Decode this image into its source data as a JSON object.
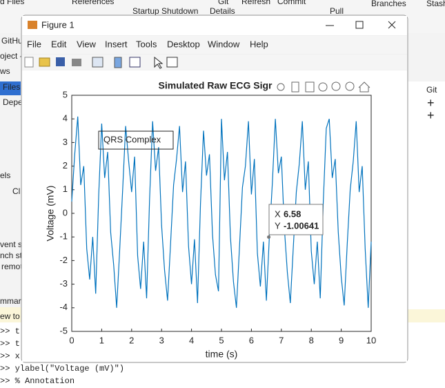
{
  "background": {
    "top_fragments": [
      "d Files",
      "References",
      "Startup Shutdown",
      "Git",
      "Details",
      "Refresh",
      "Commit",
      "Pull",
      "Branches",
      "Stash"
    ],
    "left_fragments": [
      "GitHu",
      "oject -",
      "ws",
      "Files",
      "Depe",
      "els",
      "Cl",
      "vent s",
      "nch st",
      "remot",
      "mmar",
      "ew to M"
    ],
    "right_fragments": [
      "Git"
    ],
    "command_lines": [
      ">> t",
      ">> t",
      ">> x",
      ">> ylabel(\"Voltage (mV)\")",
      ">> % Annotation"
    ]
  },
  "window": {
    "title": "Figure 1",
    "menu": [
      "File",
      "Edit",
      "View",
      "Insert",
      "Tools",
      "Desktop",
      "Window",
      "Help"
    ]
  },
  "chart_data": {
    "type": "line",
    "title": "Simulated Raw ECG Sigr",
    "xlabel": "time (s)",
    "ylabel": "Voltage (mV)",
    "x": [
      0,
      0.1,
      0.2,
      0.3,
      0.4,
      0.5,
      0.6,
      0.7,
      0.8,
      0.9,
      1,
      1.1,
      1.2,
      1.3,
      1.4,
      1.5,
      1.6,
      1.7,
      1.8,
      1.9,
      2,
      2.1,
      2.2,
      2.3,
      2.4,
      2.5,
      2.6,
      2.7,
      2.8,
      2.9,
      3,
      3.1,
      3.2,
      3.3,
      3.4,
      3.5,
      3.6,
      3.7,
      3.8,
      3.9,
      4,
      4.1,
      4.2,
      4.3,
      4.4,
      4.5,
      4.6,
      4.7,
      4.8,
      4.9,
      5,
      5.1,
      5.2,
      5.3,
      5.4,
      5.5,
      5.6,
      5.7,
      5.8,
      5.9,
      6,
      6.1,
      6.2,
      6.3,
      6.4,
      6.5,
      6.6,
      6.7,
      6.8,
      6.9,
      7,
      7.1,
      7.2,
      7.3,
      7.4,
      7.5,
      7.6,
      7.7,
      7.8,
      7.9,
      8,
      8.1,
      8.2,
      8.3,
      8.4,
      8.5,
      8.6,
      8.7,
      8.8,
      8.9,
      9,
      9.1,
      9.2,
      9.3,
      9.4,
      9.5,
      9.6,
      9.7,
      9.8,
      9.9,
      10
    ],
    "values": [
      0.5,
      2.5,
      4.1,
      1.2,
      2.0,
      -1.5,
      -2.8,
      -1.0,
      -3.4,
      0.8,
      3.8,
      1.5,
      2.6,
      -0.8,
      -2.2,
      -4.0,
      -1.6,
      1.0,
      3.7,
      2.2,
      0.9,
      2.4,
      -1.8,
      -3.2,
      -1.2,
      -3.6,
      0.6,
      3.9,
      1.8,
      2.8,
      -0.5,
      -2.4,
      -3.7,
      -1.3,
      1.2,
      2.3,
      3.7,
      0.9,
      2.2,
      -1.4,
      -3.0,
      -1.1,
      -3.8,
      0.4,
      3.5,
      1.6,
      2.5,
      -0.9,
      -2.6,
      -3.3,
      4.0,
      1.4,
      2.6,
      -1.0,
      -2.9,
      -4.0,
      -1.5,
      1.1,
      2.0,
      3.9,
      0.8,
      2.3,
      -1.7,
      -3.1,
      -1.2,
      -3.7,
      -1.0,
      1.3,
      4.0,
      1.7,
      2.4,
      -0.6,
      -2.5,
      -3.8,
      -1.4,
      0.9,
      2.1,
      3.9,
      1.0,
      2.2,
      -1.6,
      -3.0,
      -1.2,
      -3.6,
      0.5,
      3.6,
      4.0,
      1.5,
      2.3,
      -0.8,
      -2.7,
      -3.9,
      -1.3,
      1.0,
      2.2,
      3.9,
      0.9,
      2.0,
      -1.5,
      -4.0,
      -1.2
    ],
    "color": "#0072BD",
    "xlim": [
      0,
      10
    ],
    "ylim": [
      -5,
      5
    ],
    "xticks": [
      0,
      1,
      2,
      3,
      4,
      5,
      6,
      7,
      8,
      9,
      10
    ],
    "yticks": [
      -5,
      -4,
      -3,
      -2,
      -1,
      0,
      1,
      2,
      3,
      4,
      5
    ],
    "annotation": "QRS Complex",
    "datatip": {
      "x_label": "X",
      "x": 6.58,
      "y_label": "Y",
      "y": -1.00641
    }
  }
}
